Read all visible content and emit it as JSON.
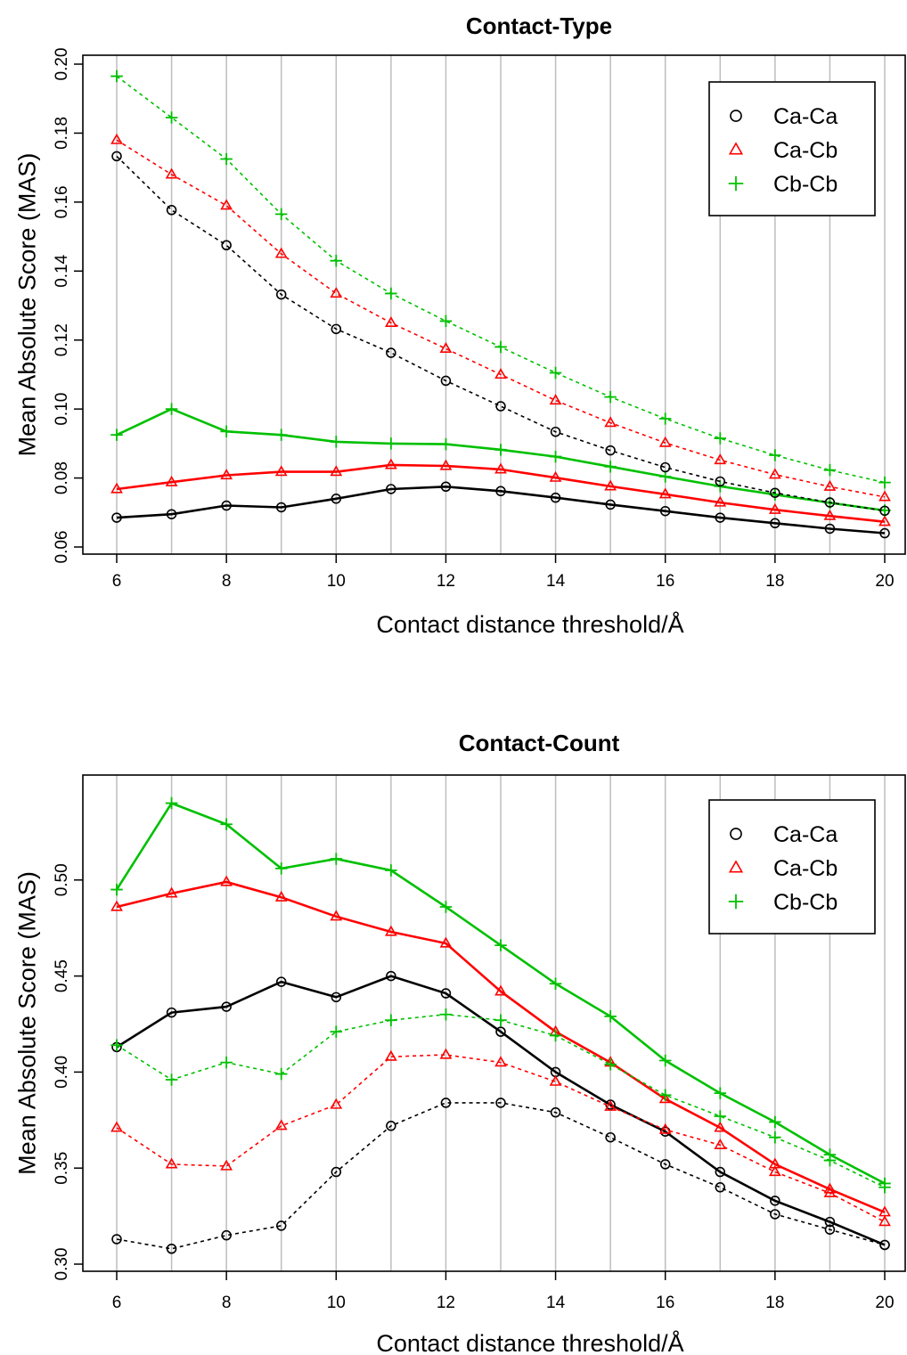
{
  "chart_data": [
    {
      "type": "line",
      "title": "Contact-Type",
      "xlabel": "Contact distance threshold/Å",
      "ylabel": "Mean Absolute Score (MAS)",
      "xlim": [
        6,
        20
      ],
      "ylim": [
        0.06,
        0.2
      ],
      "x_ticks": [
        "6",
        "8",
        "10",
        "12",
        "14",
        "16",
        "18",
        "20"
      ],
      "y_ticks": [
        "0.06",
        "0.08",
        "0.10",
        "0.12",
        "0.14",
        "0.16",
        "0.18",
        "0.20"
      ],
      "vertical_grid": true,
      "legend_position": "top-right",
      "x": [
        6,
        7,
        8,
        9,
        10,
        11,
        12,
        13,
        14,
        15,
        16,
        17,
        18,
        19,
        20
      ],
      "series": [
        {
          "name": "Ca-Ca",
          "line": "solid",
          "marker": "circle",
          "color": "#000000",
          "values": [
            0.0685,
            0.0695,
            0.072,
            0.0715,
            0.074,
            0.0768,
            0.0775,
            0.0762,
            0.0743,
            0.0723,
            0.0704,
            0.0685,
            0.0669,
            0.0653,
            0.064
          ]
        },
        {
          "name": "Ca-Cb",
          "line": "solid",
          "marker": "triangle",
          "color": "#ff0000",
          "values": [
            0.0768,
            0.0788,
            0.0808,
            0.0818,
            0.0818,
            0.0838,
            0.0835,
            0.0825,
            0.0801,
            0.0776,
            0.0753,
            0.0729,
            0.0708,
            0.069,
            0.0673
          ]
        },
        {
          "name": "Cb-Cb",
          "line": "solid",
          "marker": "plus",
          "color": "#00c000",
          "values": [
            0.0925,
            0.1,
            0.0935,
            0.0925,
            0.0905,
            0.09,
            0.0898,
            0.0882,
            0.0862,
            0.0833,
            0.0804,
            0.0776,
            0.0752,
            0.0728,
            0.0706
          ]
        },
        {
          "name": "Ca-Ca",
          "line": "dotted",
          "marker": "circle",
          "color": "#000000",
          "values": [
            0.1733,
            0.1577,
            0.1475,
            0.1332,
            0.1232,
            0.1163,
            0.1082,
            0.1008,
            0.0934,
            0.088,
            0.0831,
            0.079,
            0.0757,
            0.0729,
            0.0705
          ]
        },
        {
          "name": "Ca-Cb",
          "line": "dotted",
          "marker": "triangle",
          "color": "#ff0000",
          "values": [
            0.178,
            0.168,
            0.159,
            0.145,
            0.1335,
            0.125,
            0.1175,
            0.11,
            0.1025,
            0.096,
            0.0902,
            0.0852,
            0.081,
            0.0775,
            0.0745
          ]
        },
        {
          "name": "Cb-Cb",
          "line": "dotted",
          "marker": "plus",
          "color": "#00c000",
          "values": [
            0.1965,
            0.1845,
            0.1725,
            0.1565,
            0.143,
            0.1335,
            0.1255,
            0.118,
            0.1105,
            0.1035,
            0.0972,
            0.0915,
            0.0866,
            0.0823,
            0.0787
          ]
        }
      ]
    },
    {
      "type": "line",
      "title": "Contact-Count",
      "xlabel": "Contact distance threshold/Å",
      "ylabel": "Mean Absolute Score (MAS)",
      "xlim": [
        6,
        20
      ],
      "ylim": [
        0.3,
        0.55
      ],
      "x_ticks": [
        "6",
        "8",
        "10",
        "12",
        "14",
        "16",
        "18",
        "20"
      ],
      "y_ticks": [
        "0.30",
        "0.35",
        "0.40",
        "0.45",
        "0.50"
      ],
      "vertical_grid": true,
      "legend_position": "top-right",
      "x": [
        6,
        7,
        8,
        9,
        10,
        11,
        12,
        13,
        14,
        15,
        16,
        17,
        18,
        19,
        20
      ],
      "series": [
        {
          "name": "Ca-Ca",
          "line": "solid",
          "marker": "circle",
          "color": "#000000",
          "values": [
            0.413,
            0.431,
            0.434,
            0.447,
            0.439,
            0.45,
            0.441,
            0.421,
            0.4,
            0.383,
            0.369,
            0.348,
            0.333,
            0.322,
            0.31
          ]
        },
        {
          "name": "Ca-Cb",
          "line": "solid",
          "marker": "triangle",
          "color": "#ff0000",
          "values": [
            0.486,
            0.493,
            0.499,
            0.491,
            0.481,
            0.473,
            0.467,
            0.442,
            0.421,
            0.405,
            0.386,
            0.371,
            0.352,
            0.339,
            0.327
          ]
        },
        {
          "name": "Cb-Cb",
          "line": "solid",
          "marker": "plus",
          "color": "#00c000",
          "values": [
            0.495,
            0.54,
            0.529,
            0.506,
            0.511,
            0.505,
            0.486,
            0.466,
            0.446,
            0.429,
            0.406,
            0.389,
            0.374,
            0.357,
            0.342
          ]
        },
        {
          "name": "Ca-Ca",
          "line": "dotted",
          "marker": "circle",
          "color": "#000000",
          "values": [
            0.313,
            0.308,
            0.315,
            0.32,
            0.348,
            0.372,
            0.384,
            0.384,
            0.379,
            0.366,
            0.352,
            0.34,
            0.326,
            0.318,
            0.31
          ]
        },
        {
          "name": "Ca-Cb",
          "line": "dotted",
          "marker": "triangle",
          "color": "#ff0000",
          "values": [
            0.371,
            0.352,
            0.351,
            0.372,
            0.383,
            0.408,
            0.409,
            0.405,
            0.395,
            0.382,
            0.37,
            0.362,
            0.348,
            0.337,
            0.322
          ]
        },
        {
          "name": "Cb-Cb",
          "line": "dotted",
          "marker": "plus",
          "color": "#00c000",
          "values": [
            0.414,
            0.396,
            0.405,
            0.399,
            0.421,
            0.427,
            0.43,
            0.427,
            0.419,
            0.404,
            0.388,
            0.377,
            0.366,
            0.354,
            0.34
          ]
        }
      ]
    }
  ]
}
